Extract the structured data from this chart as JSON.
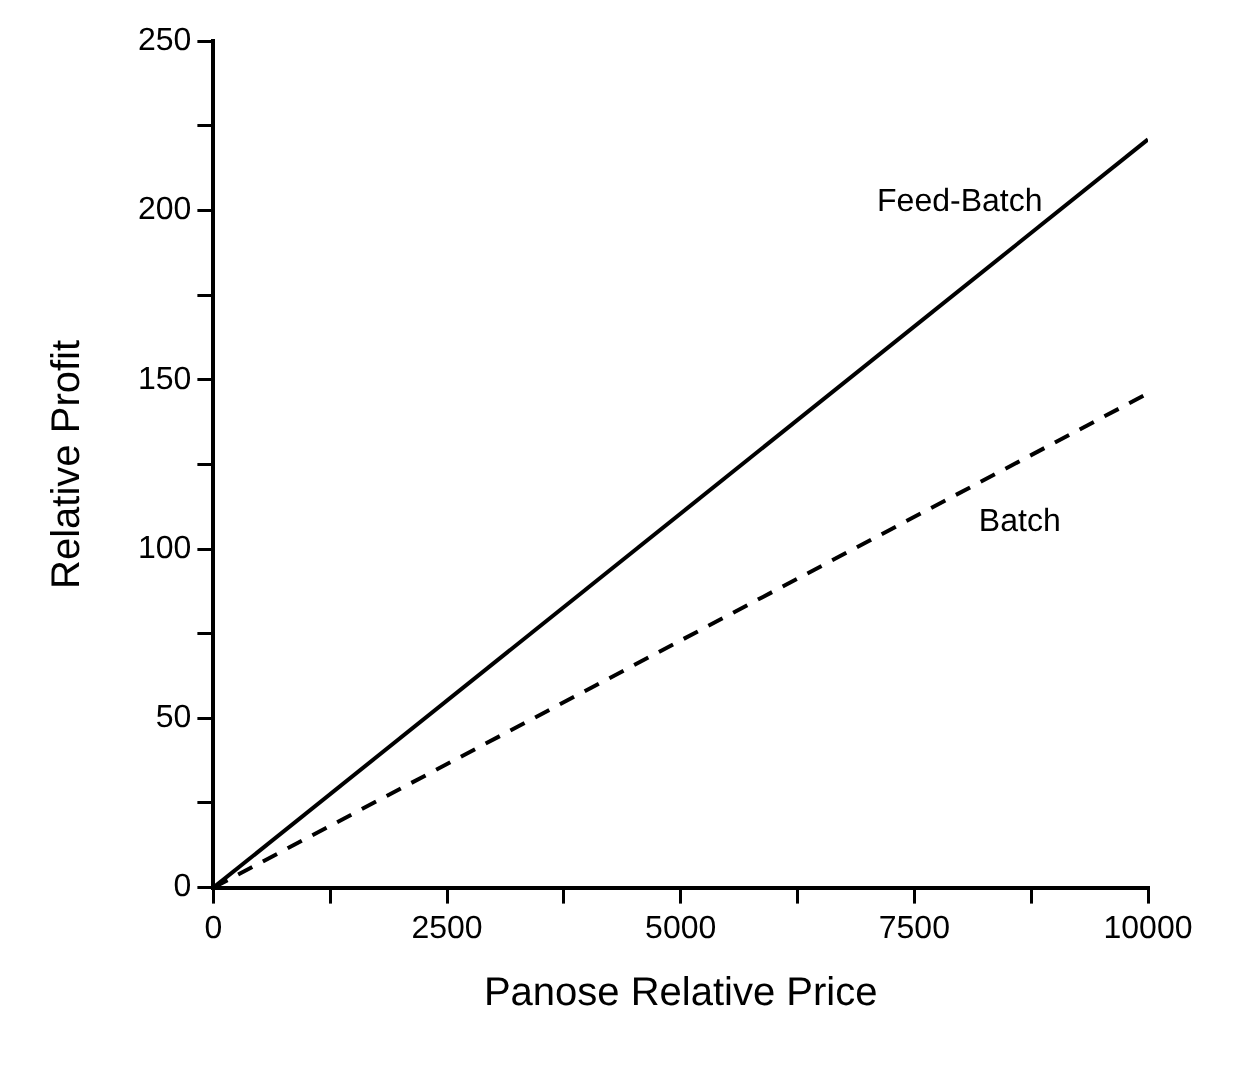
{
  "chart_data": {
    "type": "line",
    "xlabel": "Panose Relative Price",
    "ylabel": "Relative Profit",
    "x": [
      0,
      10000
    ],
    "series": [
      {
        "name": "Feed-Batch",
        "color": "#000000",
        "values": [
          0,
          221
        ],
        "line_style": "solid"
      },
      {
        "name": "Batch",
        "color": "#000000",
        "values": [
          0,
          146
        ],
        "line_style": "dashed"
      }
    ],
    "xlim": [
      0,
      10000
    ],
    "xticks": [
      0,
      {
        "value": 1250,
        "label": null
      },
      2500,
      {
        "value": 3750,
        "label": null
      },
      5000,
      {
        "value": 6250,
        "label": null
      },
      7500,
      {
        "value": 8750,
        "label": null
      },
      10000
    ],
    "ylim": [
      0,
      250
    ],
    "yticks": [
      0,
      {
        "value": 25,
        "label": null
      },
      50,
      {
        "value": 75,
        "label": null
      },
      100,
      {
        "value": 125,
        "label": null
      },
      150,
      {
        "value": 175,
        "label": null
      },
      200,
      {
        "value": 225,
        "label": null
      },
      250
    ],
    "grid": false,
    "legend": false,
    "marker": "none"
  }
}
